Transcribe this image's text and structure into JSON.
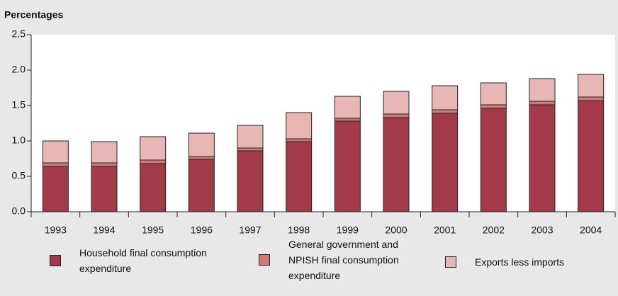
{
  "chart_data": {
    "type": "stacked_bar",
    "y_label": "Percentages",
    "categories": [
      "1993",
      "1994",
      "1995",
      "1996",
      "1997",
      "1998",
      "1999",
      "2000",
      "2001",
      "2002",
      "2003",
      "2004"
    ],
    "series": [
      {
        "name": "Household final consumption expenditure",
        "color": "#a33a4a",
        "values": [
          0.64,
          0.64,
          0.68,
          0.74,
          0.86,
          0.99,
          1.28,
          1.33,
          1.39,
          1.46,
          1.51,
          1.57
        ]
      },
      {
        "name": "General government and NPISH final consumption expenditure",
        "color": "#cf7a78",
        "values": [
          0.05,
          0.05,
          0.05,
          0.04,
          0.04,
          0.04,
          0.04,
          0.05,
          0.05,
          0.05,
          0.05,
          0.05
        ]
      },
      {
        "name": "Exports less imports",
        "color": "#e8b7b5",
        "values": [
          0.31,
          0.3,
          0.33,
          0.33,
          0.32,
          0.37,
          0.31,
          0.32,
          0.34,
          0.31,
          0.32,
          0.32
        ]
      }
    ],
    "ylim": [
      0,
      2.5
    ],
    "yticks": [
      {
        "value": 0,
        "label": "0.0"
      },
      0.5,
      {
        "value": 1,
        "label": "1.0"
      },
      1.5,
      {
        "value": 2,
        "label": "2.0"
      },
      2.5
    ]
  }
}
